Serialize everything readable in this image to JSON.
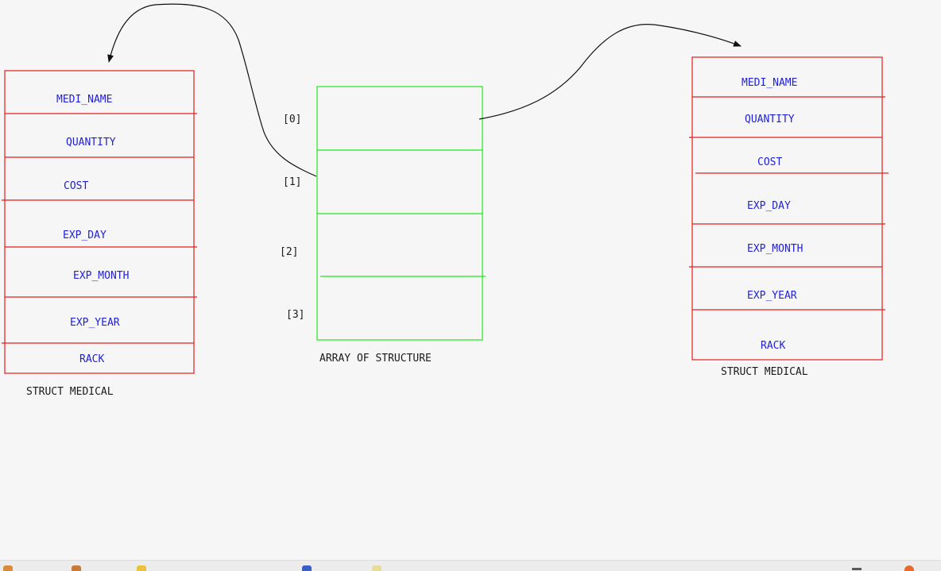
{
  "left_struct": {
    "caption": "STRUCT MEDICAL",
    "fields": [
      "MEDI_NAME",
      "QUANTITY",
      "COST",
      "EXP_DAY",
      "EXP_MONTH",
      "EXP_YEAR",
      "RACK"
    ]
  },
  "array": {
    "caption": "ARRAY OF STRUCTURE",
    "indices": [
      "[0]",
      "[1]",
      "[2]",
      "[3]"
    ]
  },
  "right_struct": {
    "caption": "STRUCT MEDICAL",
    "fields": [
      "MEDI_NAME",
      "QUANTITY",
      "COST",
      "EXP_DAY",
      "EXP_MONTH",
      "EXP_YEAR",
      "RACK"
    ]
  },
  "colors": {
    "struct_border": "#e81c1c",
    "array_border": "#22e622",
    "field_text": "#2121d6",
    "background": "#f6f6f6"
  },
  "taskbar": {
    "icons": [
      "home-icon",
      "speaker-icon",
      "lightbulb-icon",
      "flag-icon",
      "document-icon",
      "minimize-icon",
      "firefox-icon"
    ]
  }
}
